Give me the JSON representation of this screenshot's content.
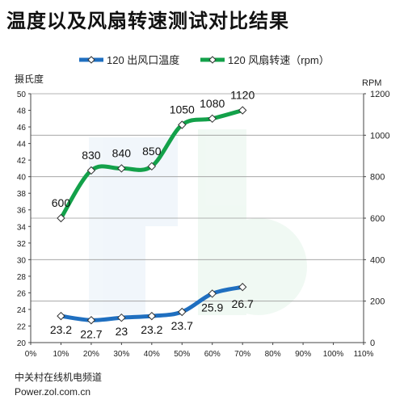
{
  "chart_data": {
    "type": "line",
    "title": "温度以及风扇转速测试对比结果",
    "x": [
      "10%",
      "20%",
      "30%",
      "40%",
      "50%",
      "60%",
      "70%"
    ],
    "x_ticks": [
      "0%",
      "10%",
      "20%",
      "30%",
      "40%",
      "50%",
      "60%",
      "70%",
      "80%",
      "90%",
      "100%",
      "110%"
    ],
    "ylabel_left": "摄氏度",
    "ylabel_right": "RPM",
    "ylim_left": [
      20,
      50
    ],
    "ylim_right": [
      0,
      1200
    ],
    "y_ticks_left": [
      "20",
      "22",
      "24",
      "26",
      "28",
      "30",
      "32",
      "34",
      "36",
      "38",
      "40",
      "42",
      "44",
      "46",
      "48",
      "50"
    ],
    "y_ticks_right": [
      "0",
      "200",
      "400",
      "600",
      "800",
      "1000",
      "1200"
    ],
    "grid": true,
    "legend_position": "top",
    "series": [
      {
        "name": "120 出风口温度",
        "axis": "left",
        "color": "#1f6fc0",
        "values": [
          23.2,
          22.7,
          23,
          23.2,
          23.7,
          25.9,
          26.7
        ],
        "labels": [
          "23.2",
          "22.7",
          "23",
          "23.2",
          "23.7",
          "25.9",
          "26.7"
        ]
      },
      {
        "name": "120 风扇转速（rpm）",
        "axis": "right",
        "color": "#13a14a",
        "values": [
          600,
          830,
          840,
          850,
          1050,
          1080,
          1120
        ],
        "labels": [
          "600",
          "830",
          "840",
          "850",
          "1050",
          "1080",
          "1120"
        ]
      }
    ]
  },
  "footer": {
    "line1": "中关村在线机电频道",
    "line2": "Power.zol.com.cn"
  }
}
